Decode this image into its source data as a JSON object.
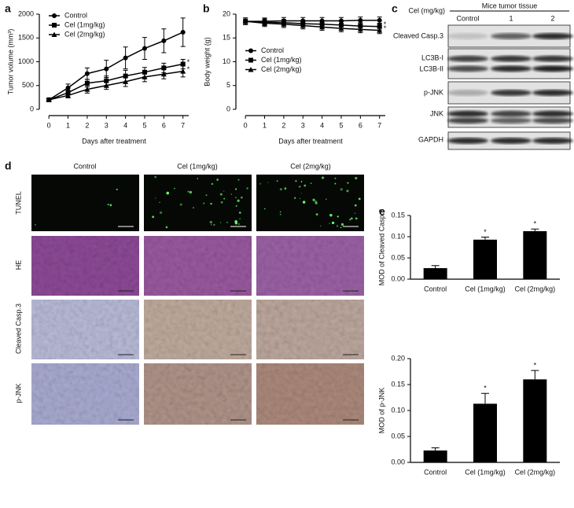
{
  "chart_data": [
    {
      "type": "line",
      "panel": "a",
      "ylabel": "Tumor volume (mm³)",
      "xlabel": "Days after treatment",
      "x": [
        0,
        1,
        2,
        3,
        4,
        5,
        6,
        7
      ],
      "xlim": [
        -0.5,
        7.3
      ],
      "xticks": [
        0,
        1,
        2,
        3,
        4,
        5,
        6,
        7
      ],
      "ylim": [
        0,
        2000
      ],
      "yticks": [
        0,
        500,
        1000,
        1500,
        2000
      ],
      "legend": "upper left",
      "series": [
        {
          "name": "Control",
          "color": "#000000",
          "marker": "circle",
          "values": [
            200,
            450,
            750,
            850,
            1080,
            1280,
            1440,
            1620
          ],
          "errors": [
            20,
            80,
            120,
            180,
            230,
            230,
            250,
            300
          ]
        },
        {
          "name": "Cel (1mg/kg)",
          "color": "#000000",
          "marker": "square",
          "values": [
            200,
            350,
            550,
            600,
            700,
            780,
            870,
            950
          ],
          "errors": [
            20,
            50,
            80,
            100,
            120,
            100,
            100,
            100
          ],
          "significance": "*"
        },
        {
          "name": "Cel (2mg/kg)",
          "color": "#000000",
          "marker": "triangle",
          "values": [
            200,
            290,
            420,
            500,
            580,
            680,
            740,
            800
          ],
          "errors": [
            20,
            50,
            80,
            80,
            100,
            100,
            100,
            120
          ],
          "significance": "*"
        }
      ]
    },
    {
      "type": "line",
      "panel": "b",
      "ylabel": "Body weight (g)",
      "xlabel": "Days after treatment",
      "x": [
        0,
        1,
        2,
        3,
        4,
        5,
        6,
        7
      ],
      "xlim": [
        -0.5,
        7.3
      ],
      "xticks": [
        0,
        1,
        2,
        3,
        4,
        5,
        6,
        7
      ],
      "ylim": [
        0,
        20
      ],
      "yticks": [
        0,
        5,
        10,
        15,
        20
      ],
      "legend": "center left",
      "series": [
        {
          "name": "Control",
          "color": "#000000",
          "marker": "circle",
          "values": [
            18.5,
            18.5,
            18.6,
            18.6,
            18.6,
            18.6,
            18.7,
            18.7
          ],
          "errors": [
            0.7,
            0.7,
            0.7,
            0.7,
            0.7,
            0.7,
            0.7,
            0.7
          ]
        },
        {
          "name": "Cel (1mg/kg)",
          "color": "#000000",
          "marker": "square",
          "values": [
            18.5,
            18.3,
            18.2,
            18.0,
            17.9,
            17.7,
            17.5,
            17.4
          ],
          "errors": [
            0.7,
            0.7,
            0.7,
            0.7,
            0.7,
            0.7,
            0.7,
            0.7
          ],
          "significance": "*"
        },
        {
          "name": "Cel (2mg/kg)",
          "color": "#000000",
          "marker": "triangle",
          "values": [
            18.5,
            18.1,
            17.9,
            17.6,
            17.3,
            17.0,
            16.8,
            16.6
          ],
          "errors": [
            0.7,
            0.7,
            0.7,
            0.7,
            0.7,
            0.7,
            0.7,
            0.7
          ],
          "significance": "*"
        }
      ]
    },
    {
      "type": "bar",
      "panel": "e",
      "ylabel": "MOD of Cleaved Casp.3",
      "color": "#000000",
      "categories": [
        "Control",
        "Cel (1mg/kg)",
        "Cel (2mg/kg)"
      ],
      "values": [
        0.026,
        0.093,
        0.113
      ],
      "errors": [
        0.006,
        0.006,
        0.005
      ],
      "significance": [
        null,
        "*",
        "*"
      ],
      "ylim": [
        0,
        0.15
      ],
      "yticks": [
        {
          "value": 0,
          "label": "0.00"
        },
        {
          "value": 0.05,
          "label": "0.05"
        },
        {
          "value": 0.1,
          "label": "0.10"
        },
        {
          "value": 0.15,
          "label": "0.15"
        }
      ]
    },
    {
      "type": "bar",
      "ylabel": "MOD of p-JNK",
      "color": "#000000",
      "categories": [
        "Control",
        "Cel (1mg/kg)",
        "Cel (2mg/kg)"
      ],
      "values": [
        0.023,
        0.113,
        0.16
      ],
      "errors": [
        0.005,
        0.02,
        0.017
      ],
      "significance": [
        null,
        "*",
        "*"
      ],
      "ylim": [
        0,
        0.2
      ],
      "yticks": [
        {
          "value": 0,
          "label": "0.00"
        },
        {
          "value": 0.05,
          "label": "0.05"
        },
        {
          "value": 0.1,
          "label": "0.10"
        },
        {
          "value": 0.15,
          "label": "0.15"
        },
        {
          "value": 0.2,
          "label": "0.20"
        }
      ]
    }
  ],
  "blot": {
    "panel": "c",
    "dose_label": "Cel (mg/kg)",
    "group_label": "Mice tumor tissue",
    "lanes": [
      "Control",
      "1",
      "2"
    ],
    "rows": [
      "Cleaved Casp.3",
      "LC3B-I",
      "LC3B-II",
      "p-JNK",
      "JNK",
      "GAPDH"
    ]
  },
  "micrographs": {
    "panel": "d",
    "columns": [
      "Control",
      "Cel (1mg/kg)",
      "Cel (2mg/kg)"
    ],
    "rows": [
      "TUNEL",
      "HE",
      "Cleaved Casp.3",
      "p-JNK"
    ]
  }
}
